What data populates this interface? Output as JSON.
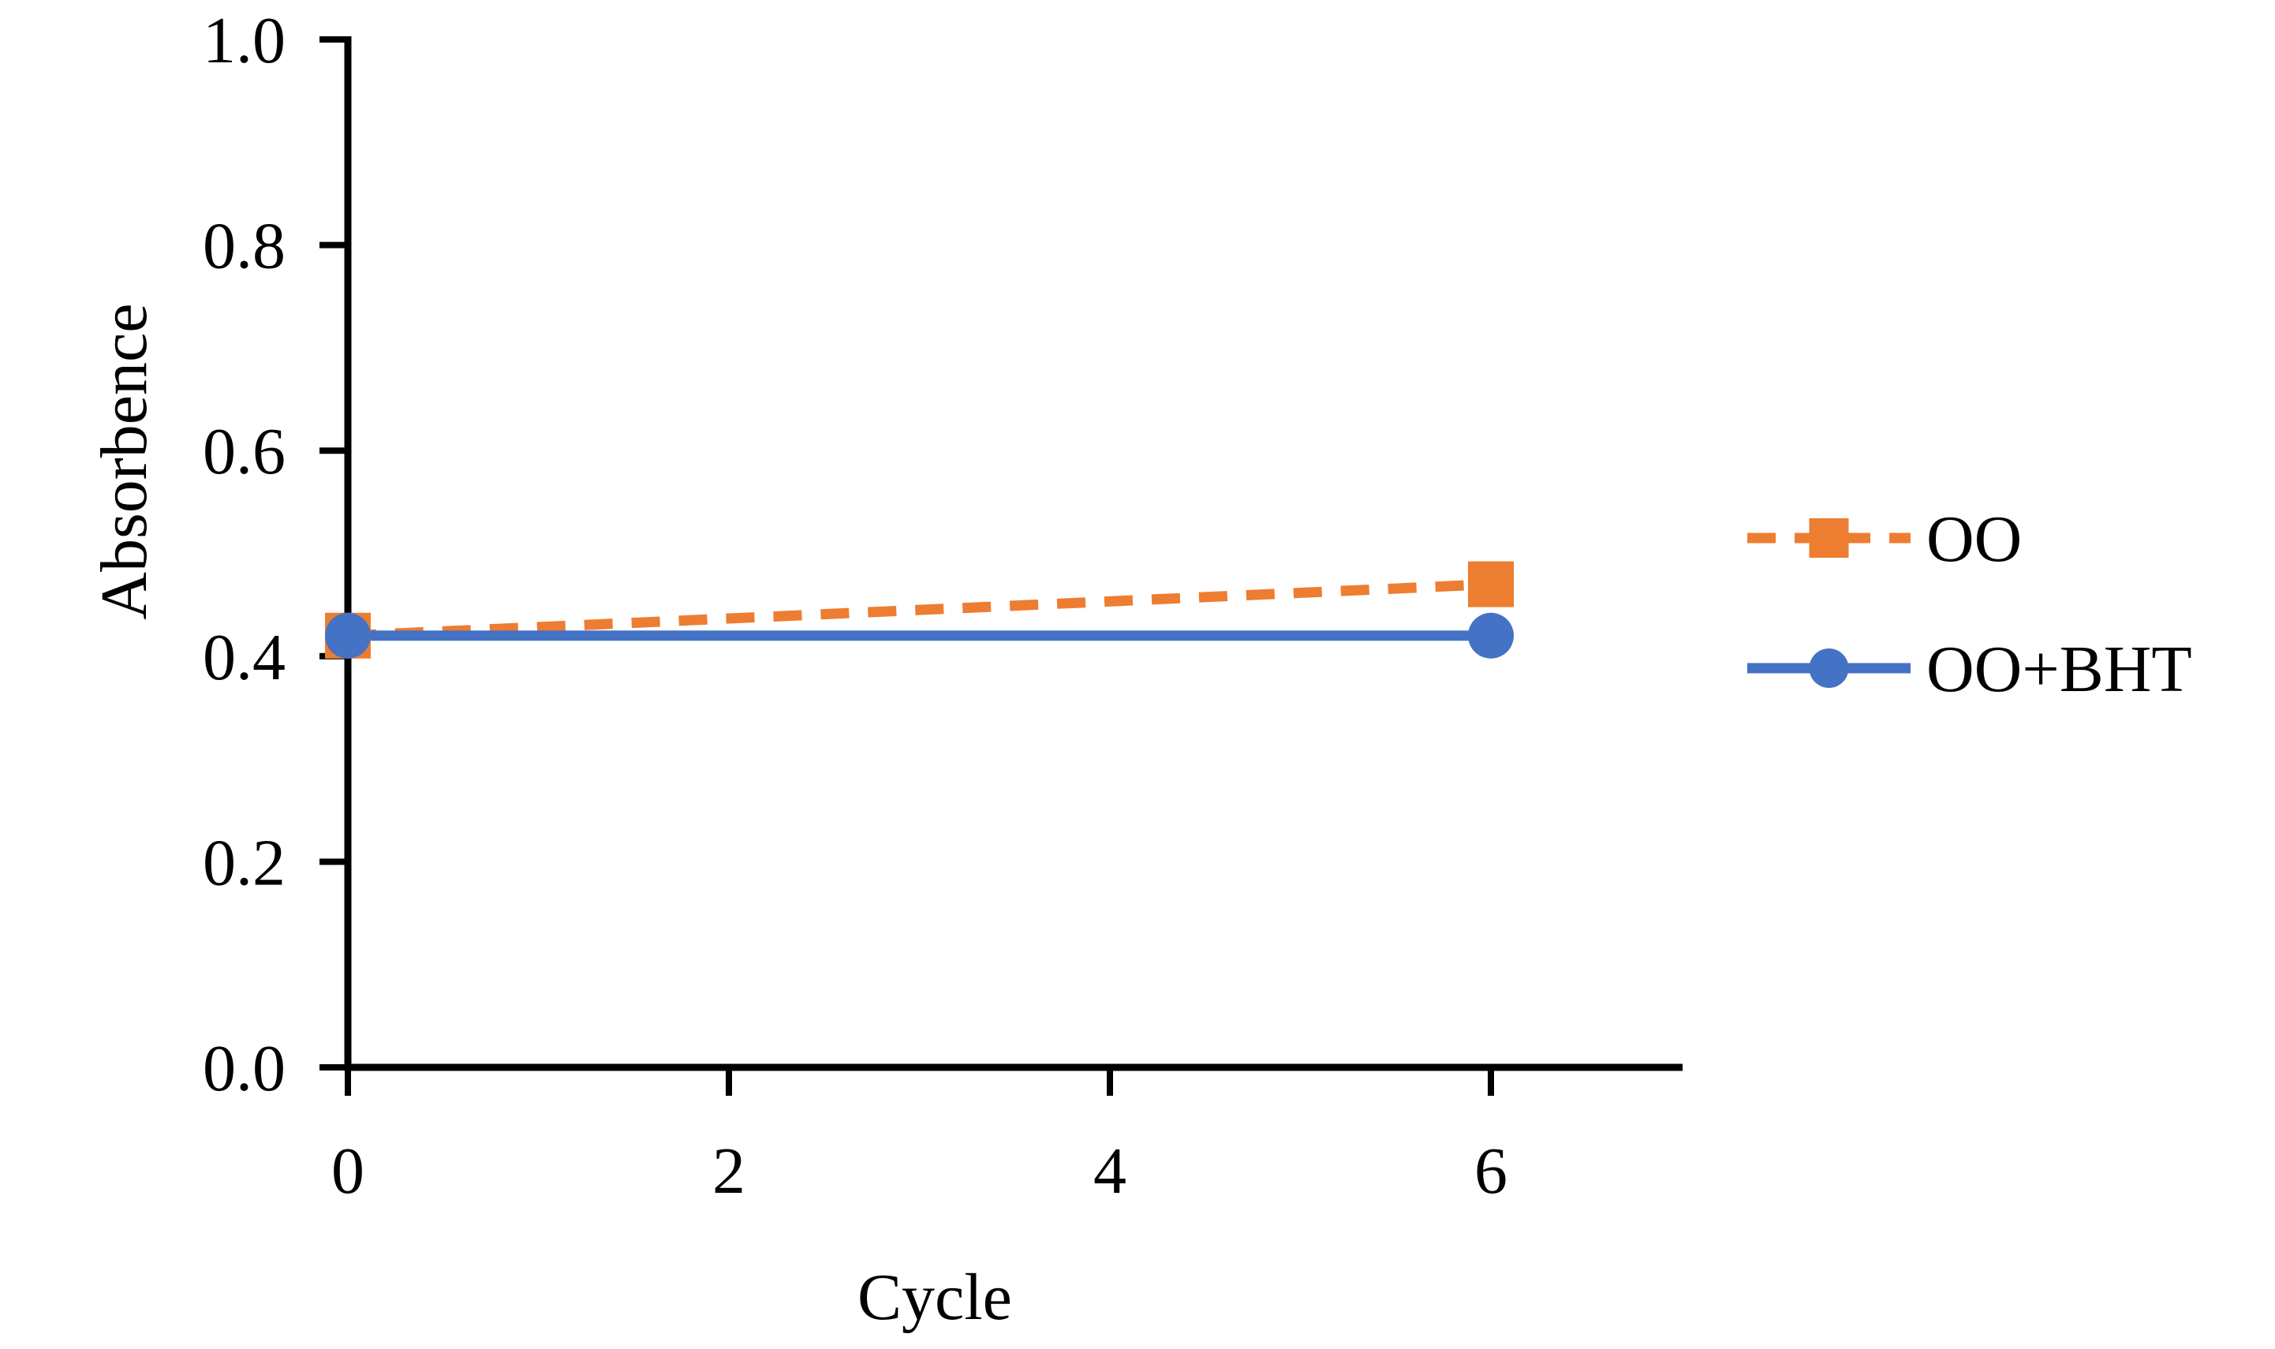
{
  "page": {
    "background": "#ffffff"
  },
  "chart_data": {
    "type": "line",
    "title": "",
    "xlabel": "Cycle",
    "ylabel": "Absorbence",
    "xlim": [
      0,
      7
    ],
    "ylim": [
      0.0,
      1.0
    ],
    "grid": false,
    "legend_position": "right-center",
    "axis_color": "#000000",
    "text_color": "#000000",
    "x_ticks": {
      "values": [
        0,
        2,
        4,
        6
      ],
      "labels": [
        "0",
        "2",
        "4",
        "6"
      ]
    },
    "y_ticks": {
      "values": [
        0.0,
        0.2,
        0.4,
        0.6,
        0.8,
        1.0
      ],
      "labels": [
        "0.0",
        "0.2",
        "0.4",
        "0.6",
        "0.8",
        "1.0"
      ]
    },
    "series": [
      {
        "name": "OO",
        "color": "#ED7D31",
        "line_style": "dashed",
        "marker": "square",
        "x": [
          0,
          6
        ],
        "y": [
          0.42,
          0.47
        ]
      },
      {
        "name": "OO+BHT",
        "color": "#4472C4",
        "line_style": "solid",
        "marker": "circle",
        "x": [
          0,
          6
        ],
        "y": [
          0.42,
          0.42
        ]
      }
    ]
  }
}
